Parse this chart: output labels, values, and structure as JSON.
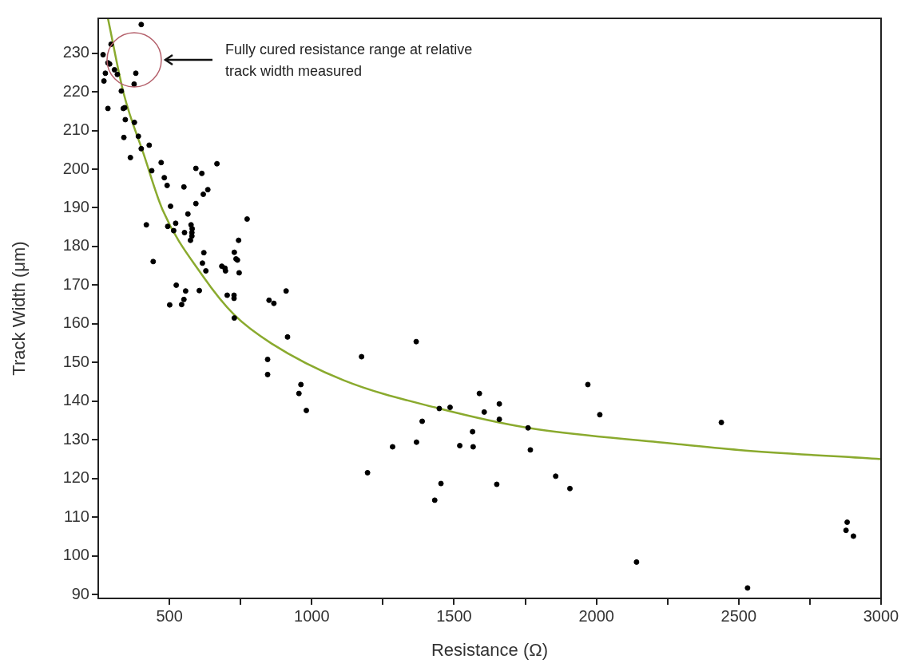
{
  "chart_data": {
    "type": "scatter",
    "xlabel": "Resistance (Ω)",
    "ylabel": "Track Width (μm)",
    "xlim": [
      250,
      3000
    ],
    "ylim": [
      89,
      239
    ],
    "xticks": [
      500,
      {
        "value": 750,
        "label": null
      },
      1000,
      {
        "value": 1250,
        "label": null
      },
      1500,
      {
        "value": 1750,
        "label": null
      },
      2000,
      {
        "value": 2250,
        "label": null
      },
      2500,
      {
        "value": 2750,
        "label": null
      },
      3000
    ],
    "yticks": [
      90,
      100,
      110,
      120,
      130,
      140,
      150,
      160,
      170,
      180,
      190,
      200,
      210,
      220,
      230
    ],
    "grid": false,
    "annotations": [
      "Fully cured resistance range at relative track width measured"
    ],
    "series": [
      {
        "marker": "circle",
        "color": "#000000",
        "x": [
          401,
          295,
          267,
          284,
          290,
          307,
          275,
          317,
          382,
          270,
          376,
          331,
          284,
          338,
          343,
          345,
          377,
          340,
          391,
          401,
          429,
          363,
          471,
          667,
          593,
          438,
          614,
          482,
          492,
          551,
          635,
          619,
          593,
          504,
          565,
          419,
          773,
          494,
          522,
          576,
          580,
          515,
          553,
          579,
          579,
          574,
          743,
          621,
          728,
          734,
          739,
          443,
          616,
          684,
          695,
          697,
          628,
          745,
          524,
          557,
          605,
          703,
          727,
          727,
          850,
          551,
          501,
          543,
          728,
          845,
          910,
          867,
          915,
          1367,
          1175,
          845,
          962,
          955,
          981,
          1589,
          1448,
          1486,
          1659,
          1606,
          1659,
          1760,
          1388,
          1565,
          1284,
          1368,
          1520,
          1567,
          1970,
          2012,
          1768,
          1857,
          1907,
          1650,
          1196,
          1454,
          1432,
          2439,
          2881,
          2877,
          2903,
          2531,
          2141
        ],
        "values": [
          237.4,
          232.3,
          229.6,
          227.5,
          227.2,
          225.7,
          224.8,
          224.5,
          224.8,
          222.8,
          222,
          220.2,
          215.7,
          215.7,
          215.9,
          212.8,
          212.1,
          208.2,
          208.5,
          205.3,
          206.2,
          203,
          201.7,
          201.4,
          200.2,
          199.6,
          198.9,
          197.8,
          195.8,
          195.4,
          194.7,
          193.5,
          191.1,
          190.4,
          188.4,
          185.6,
          187.1,
          185.2,
          186,
          185.6,
          184.6,
          184.1,
          183.6,
          183.6,
          182.7,
          181.6,
          181.6,
          178.4,
          178.5,
          176.8,
          176.5,
          176.1,
          175.7,
          174.9,
          174.4,
          173.7,
          173.7,
          173.2,
          170,
          168.5,
          168.6,
          167.4,
          167.4,
          166.6,
          166.1,
          166.3,
          164.9,
          165,
          161.5,
          150.8,
          168.5,
          165.3,
          156.6,
          155.4,
          151.5,
          146.9,
          144.3,
          142,
          137.6,
          142,
          138.1,
          138.4,
          139.3,
          137.2,
          135.3,
          133.1,
          134.8,
          132.1,
          128.2,
          129.4,
          128.5,
          128.2,
          144.3,
          136.5,
          127.4,
          120.6,
          117.4,
          118.5,
          121.5,
          118.7,
          114.4,
          134.5,
          108.7,
          106.6,
          105.1,
          91.7,
          98.4
        ]
      },
      {
        "type": "line",
        "color": "#8aaa2e",
        "x": [
          284,
          340,
          410,
          476,
          616,
          728,
          859,
          1112,
          1448,
          1760,
          2262,
          2500,
          3000
        ],
        "values": [
          239,
          219.4,
          203.8,
          189.5,
          172.5,
          162.3,
          154.9,
          145.4,
          138.1,
          133.1,
          129.1,
          127.4,
          125
        ]
      }
    ]
  }
}
